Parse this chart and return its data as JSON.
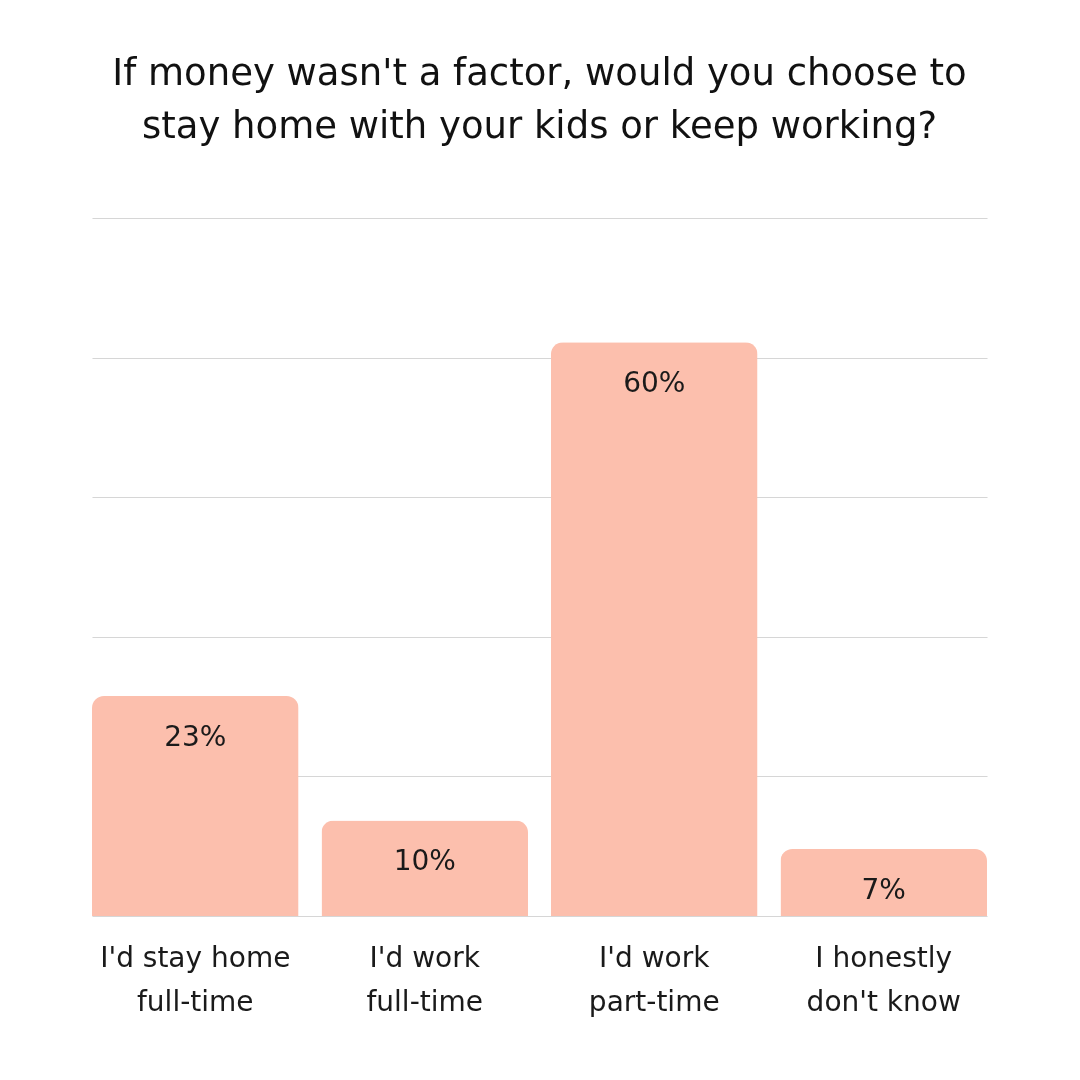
{
  "chart_data": {
    "type": "bar",
    "title": "If money wasn't a factor, would you choose to\nstay home with your kids or keep working?",
    "categories": [
      "I'd stay home\nfull-time",
      "I'd work\nfull-time",
      "I'd work\npart-time",
      "I honestly\ndon't know"
    ],
    "values": [
      23,
      10,
      60,
      7
    ],
    "value_labels": [
      "23%",
      "10%",
      "60%",
      "7%"
    ],
    "color": "#fcbfad",
    "ylim": [
      0,
      73
    ],
    "yticks": [
      {
        "value": 0,
        "label": null
      },
      {
        "value": 14.6,
        "label": null
      },
      {
        "value": 29.2,
        "label": null
      },
      {
        "value": 43.8,
        "label": null
      },
      {
        "value": 58.4,
        "label": null
      },
      {
        "value": 73,
        "label": null
      }
    ],
    "grid": "y",
    "tick_labels": "x"
  }
}
